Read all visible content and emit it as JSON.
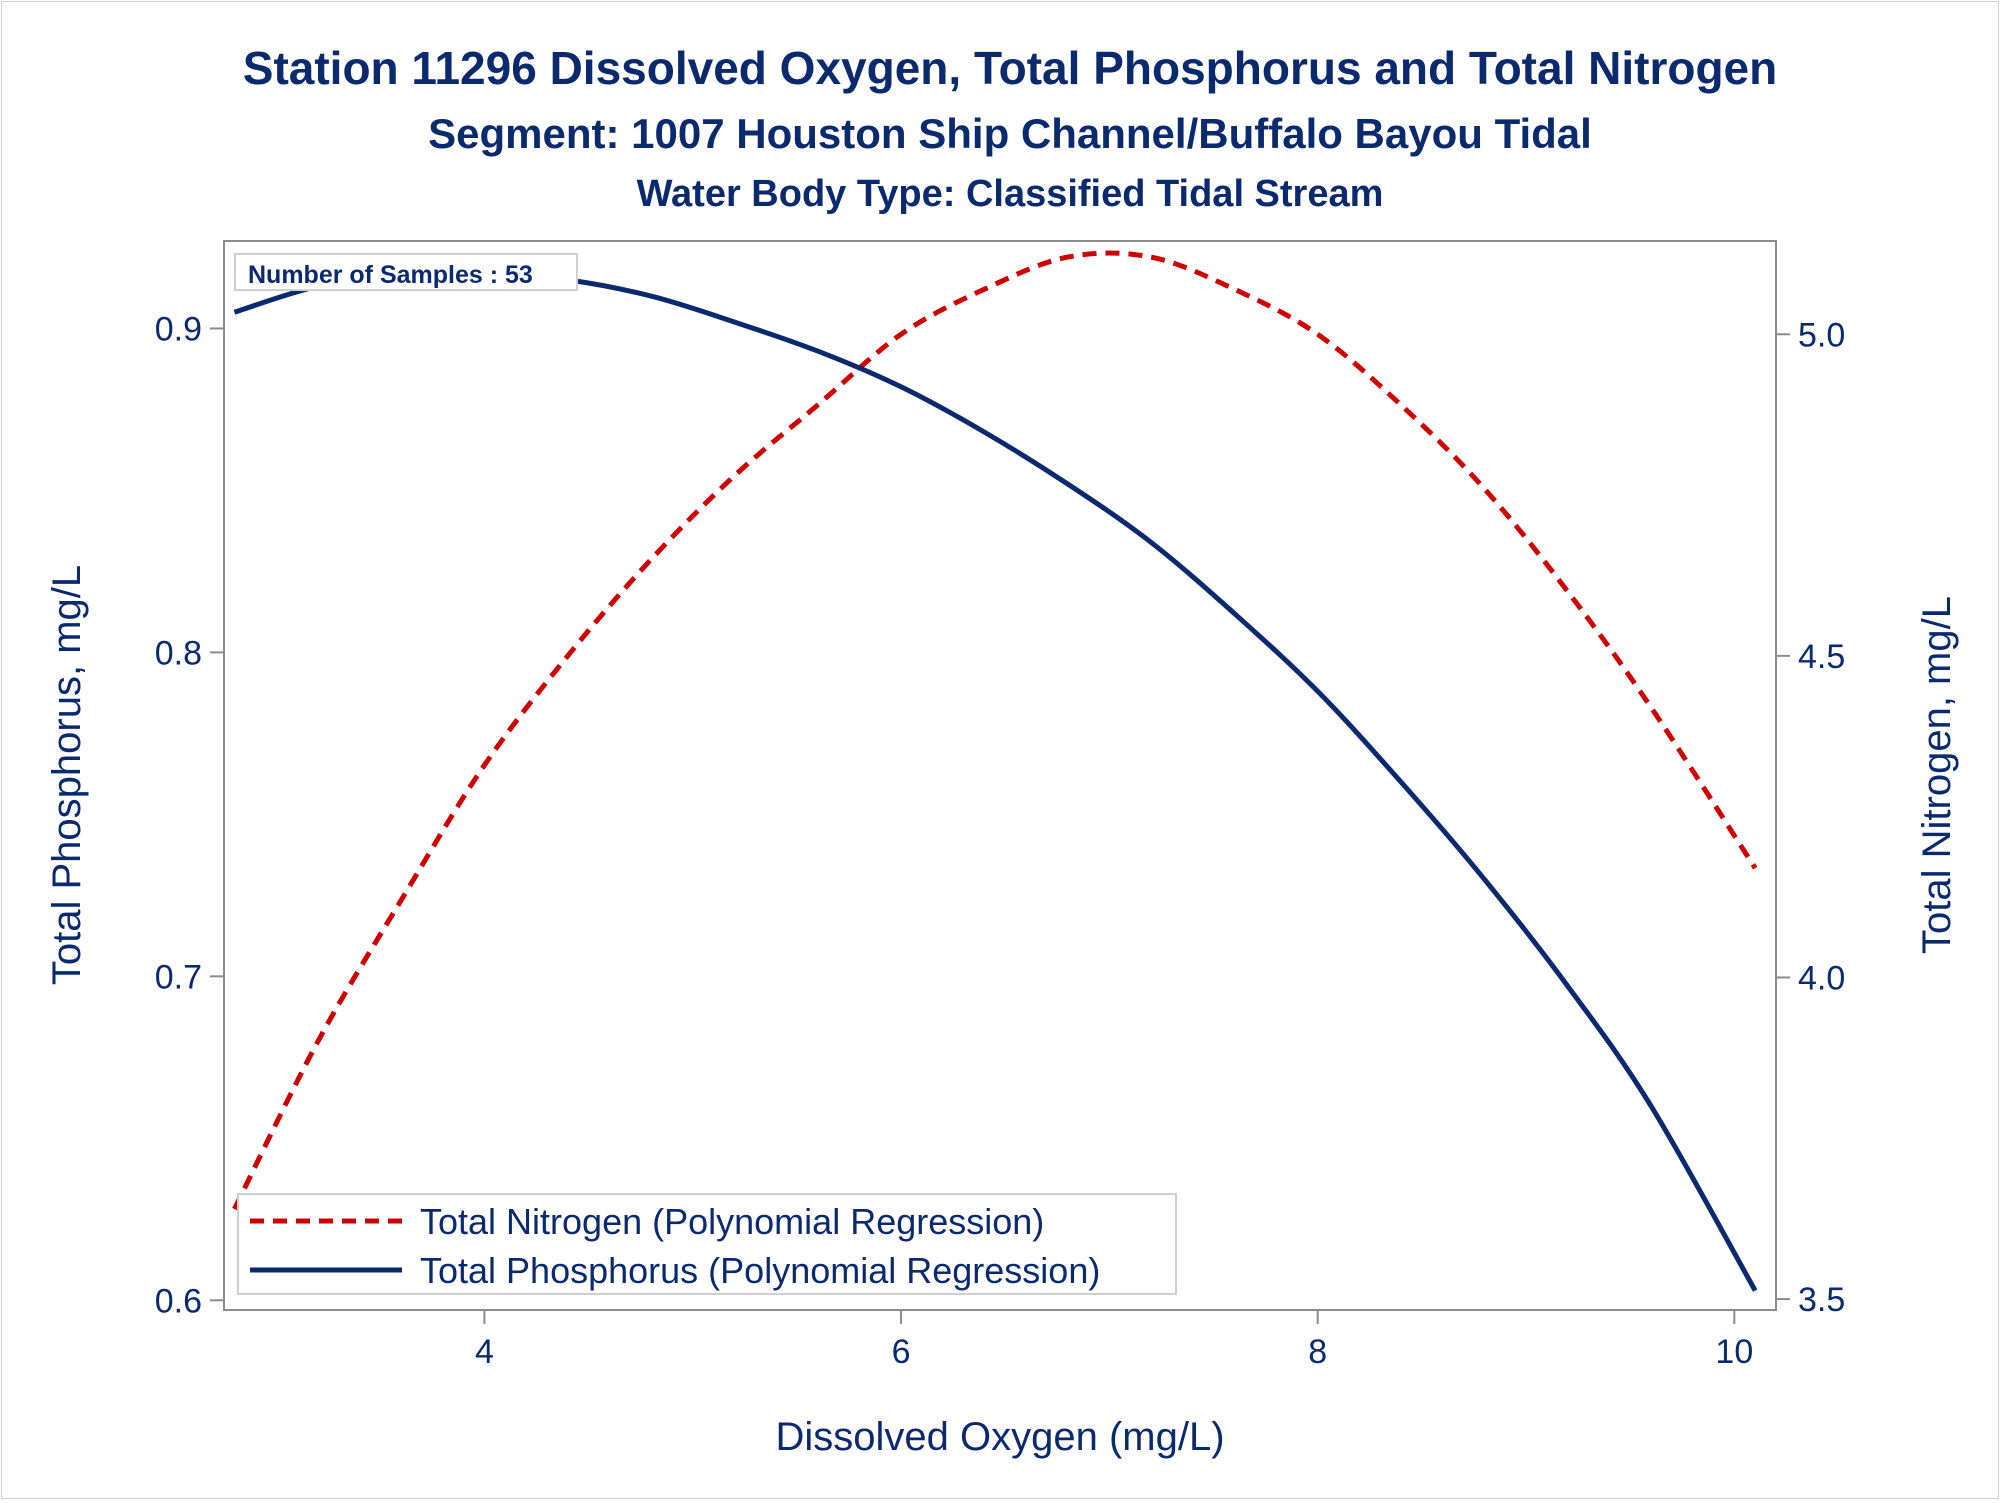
{
  "chart_data": {
    "type": "line",
    "title": "Station 11296  Dissolved Oxygen, Total Phosphorus and Total Nitrogen",
    "subtitle": "Segment: 1007  Houston Ship Channel/Buffalo Bayou Tidal",
    "subtitle2": "Water Body Type: Classified Tidal Stream",
    "xlabel": "Dissolved Oxygen (mg/L)",
    "ylabel": "Total Phosphorus, mg/L",
    "y2label": "Total Nitrogen, mg/L",
    "annotation": "Number of Samples : 53",
    "xlim": [
      2.75,
      10.2
    ],
    "ylim": [
      0.597,
      0.927
    ],
    "y2lim": [
      3.483,
      5.145
    ],
    "x_ticks": [
      "4",
      "6",
      "8",
      "10"
    ],
    "y_ticks": [
      "0.6",
      "0.7",
      "0.8",
      "0.9"
    ],
    "y2_ticks": [
      "3.5",
      "4.0",
      "4.5",
      "5.0"
    ],
    "x_tick_values": [
      4,
      6,
      8,
      10
    ],
    "y_tick_values": [
      0.6,
      0.7,
      0.8,
      0.9
    ],
    "y2_tick_values": [
      3.5,
      4.0,
      4.5,
      5.0
    ],
    "grid": false,
    "legend_position": "bottom-left",
    "series": [
      {
        "name": "Total Nitrogen (Polynomial Regression)",
        "axis": "right",
        "style": "dashed",
        "color": "#cc0000",
        "x": [
          2.8,
          3.2,
          3.6,
          4.0,
          4.4,
          4.8,
          5.2,
          5.6,
          6.0,
          6.4,
          6.8,
          7.2,
          7.6,
          8.0,
          8.4,
          8.8,
          9.2,
          9.6,
          10.1
        ],
        "y": [
          3.64,
          3.9,
          4.12,
          4.33,
          4.5,
          4.65,
          4.78,
          4.89,
          5.0,
          5.07,
          5.12,
          5.12,
          5.07,
          5.0,
          4.89,
          4.76,
          4.6,
          4.42,
          4.17
        ]
      },
      {
        "name": "Total Phosphorus (Polynomial Regression)",
        "axis": "left",
        "style": "solid",
        "color": "#0b2a6e",
        "x": [
          2.8,
          3.2,
          3.6,
          4.0,
          4.4,
          4.8,
          5.2,
          5.6,
          6.0,
          6.4,
          6.8,
          7.2,
          7.6,
          8.0,
          8.4,
          8.8,
          9.2,
          9.6,
          10.1
        ],
        "y": [
          0.905,
          0.913,
          0.916,
          0.917,
          0.915,
          0.91,
          0.902,
          0.893,
          0.882,
          0.868,
          0.852,
          0.834,
          0.812,
          0.788,
          0.76,
          0.73,
          0.697,
          0.66,
          0.603
        ]
      }
    ]
  },
  "colors": {
    "text": "#0b2a6e",
    "axis": "#8c8c8c"
  }
}
